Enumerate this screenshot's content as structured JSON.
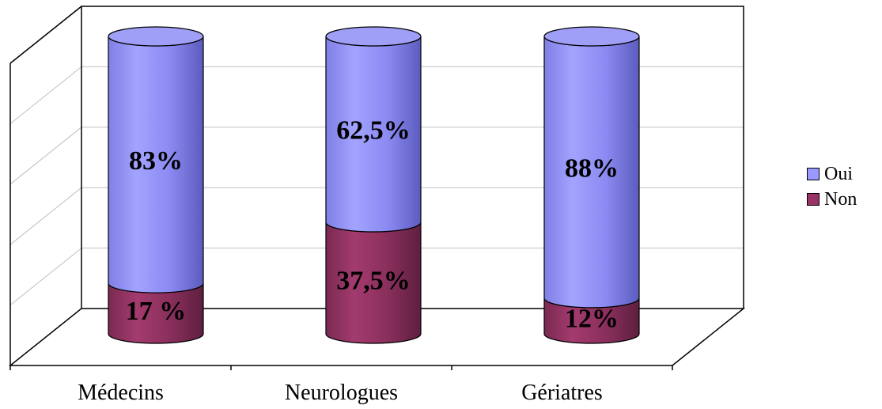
{
  "chart_data": {
    "type": "bar",
    "stacked": true,
    "style": "3d-cylinder",
    "categories": [
      "Médecins",
      "Neurologues",
      "Gériatres"
    ],
    "series": [
      {
        "name": "Oui",
        "values": [
          83,
          62.5,
          88
        ],
        "labels": [
          "83%",
          "62,5%",
          "88%"
        ],
        "color": "#9999ff"
      },
      {
        "name": "Non",
        "values": [
          17,
          37.5,
          12
        ],
        "labels": [
          "17 %",
          "37,5%",
          "12%"
        ],
        "color": "#993366"
      }
    ],
    "ylim": [
      0,
      100
    ],
    "grid": true,
    "legend_position": "right"
  },
  "legend": {
    "oui": "Oui",
    "non": "Non"
  },
  "colors": {
    "oui": "#9999ff",
    "non": "#993366",
    "grid": "#c0c0c0"
  }
}
